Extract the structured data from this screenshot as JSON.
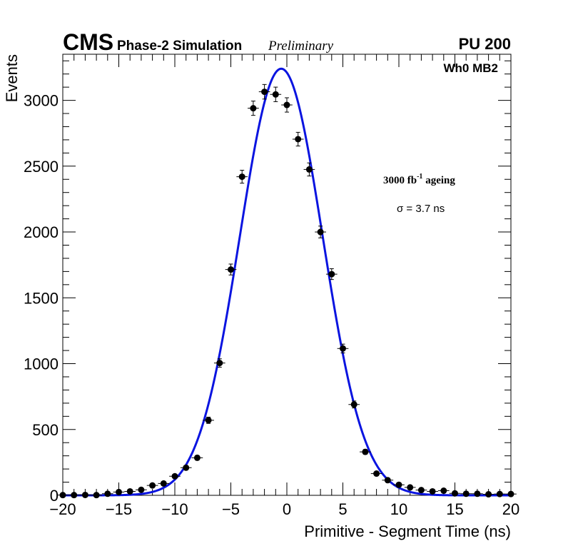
{
  "header": {
    "experiment": "CMS",
    "simulation": "Phase-2 Simulation",
    "status": "Preliminary",
    "pileup": "PU 200"
  },
  "annotations": {
    "station": "Wh0 MB2",
    "ageing_base": "3000 fb",
    "ageing_exp": "-1",
    "ageing_suffix": " ageing",
    "sigma": "σ = 3.7 ns"
  },
  "colors": {
    "fit": "#0a14e0",
    "points": "#000000"
  },
  "chart_data": {
    "type": "scatter",
    "title": "",
    "xlabel": "Primitive - Segment Time (ns)",
    "ylabel": "Events",
    "xlim": [
      -20,
      20
    ],
    "ylim": [
      0,
      3350
    ],
    "xticks": [
      -20,
      -15,
      -10,
      -5,
      0,
      5,
      10,
      15,
      20
    ],
    "xtick_labels": [
      "−20",
      "−15",
      "−10",
      "−5",
      "0",
      "5",
      "10",
      "15",
      "20"
    ],
    "yticks": [
      0,
      500,
      1000,
      1500,
      2000,
      2500,
      3000
    ],
    "ytick_labels": [
      "0",
      "500",
      "1000",
      "1500",
      "2000",
      "2500",
      "3000"
    ],
    "bin_width": 1,
    "series": [
      {
        "name": "Simulation",
        "style": "points-with-errors",
        "x": [
          -20,
          -19,
          -18,
          -17,
          -16,
          -15,
          -14,
          -13,
          -12,
          -11,
          -10,
          -9,
          -8,
          -7,
          -6,
          -5,
          -4,
          -3,
          -2,
          -1,
          0,
          1,
          2,
          3,
          4,
          5,
          6,
          7,
          8,
          9,
          10,
          11,
          12,
          13,
          14,
          15,
          16,
          17,
          18,
          19,
          20
        ],
        "y": [
          2,
          2,
          3,
          2,
          12,
          25,
          30,
          42,
          75,
          90,
          145,
          210,
          285,
          570,
          1005,
          1715,
          2420,
          2940,
          3065,
          3045,
          2965,
          2705,
          2475,
          2000,
          1680,
          1115,
          690,
          330,
          165,
          115,
          80,
          60,
          40,
          30,
          35,
          15,
          12,
          12,
          8,
          10,
          10
        ]
      },
      {
        "name": "Gaussian fit",
        "style": "line",
        "model": "gaussian",
        "amplitude": 3240,
        "mean": -0.5,
        "sigma": 3.7
      }
    ]
  }
}
